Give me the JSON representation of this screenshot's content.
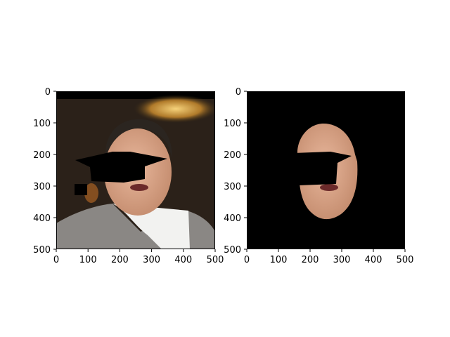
{
  "chart_data": [
    {
      "type": "image",
      "title": "",
      "xlabel": "",
      "ylabel": "",
      "xlim": [
        0,
        500
      ],
      "ylim": [
        500,
        0
      ],
      "x_ticks": [
        0,
        100,
        200,
        300,
        400,
        500
      ],
      "y_ticks": [
        0,
        100,
        200,
        300,
        400,
        500
      ],
      "grid": false,
      "image_content": "photo of a person in a suit, eye region masked in black",
      "colors": {
        "frame": "#000000",
        "mask": "#000000"
      }
    },
    {
      "type": "image",
      "title": "",
      "xlabel": "",
      "ylabel": "",
      "xlim": [
        0,
        500
      ],
      "ylim": [
        500,
        0
      ],
      "x_ticks": [
        0,
        100,
        200,
        300,
        400,
        500
      ],
      "y_ticks": [
        0,
        100,
        200,
        300,
        400,
        500
      ],
      "grid": false,
      "image_content": "segmented face on black background, eye region masked in black",
      "colors": {
        "background": "#000000",
        "mask": "#000000"
      }
    }
  ]
}
